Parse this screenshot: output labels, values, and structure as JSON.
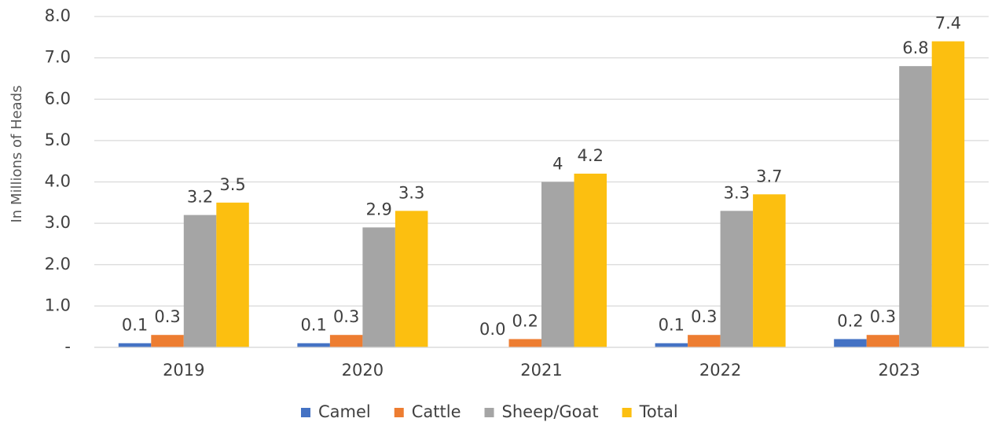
{
  "chart_data": {
    "type": "bar",
    "y_label": "In Millions of Heads",
    "categories": [
      "2019",
      "2020",
      "2021",
      "2022",
      "2023"
    ],
    "series": [
      {
        "name": "Camel",
        "color": "#4472c4",
        "values": [
          0.1,
          0.1,
          0,
          0.1,
          0.2
        ],
        "value_labels": [
          "0.1",
          "0.1",
          "0.0",
          "0.1",
          "0.2"
        ]
      },
      {
        "name": "Cattle",
        "color": "#ed7d31",
        "values": [
          0.3,
          0.3,
          0.2,
          0.3,
          0.3
        ]
      },
      {
        "name": "Sheep/Goat",
        "color": "#a5a5a5",
        "values": [
          3.2,
          2.9,
          4.0,
          3.3,
          6.8
        ]
      },
      {
        "name": "Total",
        "color": "#fcbf10",
        "values": [
          3.5,
          3.3,
          4.2,
          3.7,
          7.4
        ]
      }
    ],
    "ylim": [
      0,
      8
    ],
    "yticks": [
      {
        "value": 0,
        "label": "-"
      },
      {
        "value": 1,
        "label": "1.0"
      },
      {
        "value": 2,
        "label": "2.0"
      },
      {
        "value": 3,
        "label": "3.0"
      },
      {
        "value": 4,
        "label": "4.0"
      },
      {
        "value": 5,
        "label": "5.0"
      },
      {
        "value": 6,
        "label": "6.0"
      },
      {
        "value": 7,
        "label": "7.0"
      },
      {
        "value": 8,
        "label": "8.0"
      }
    ],
    "grid": true,
    "legend": "bottom"
  }
}
